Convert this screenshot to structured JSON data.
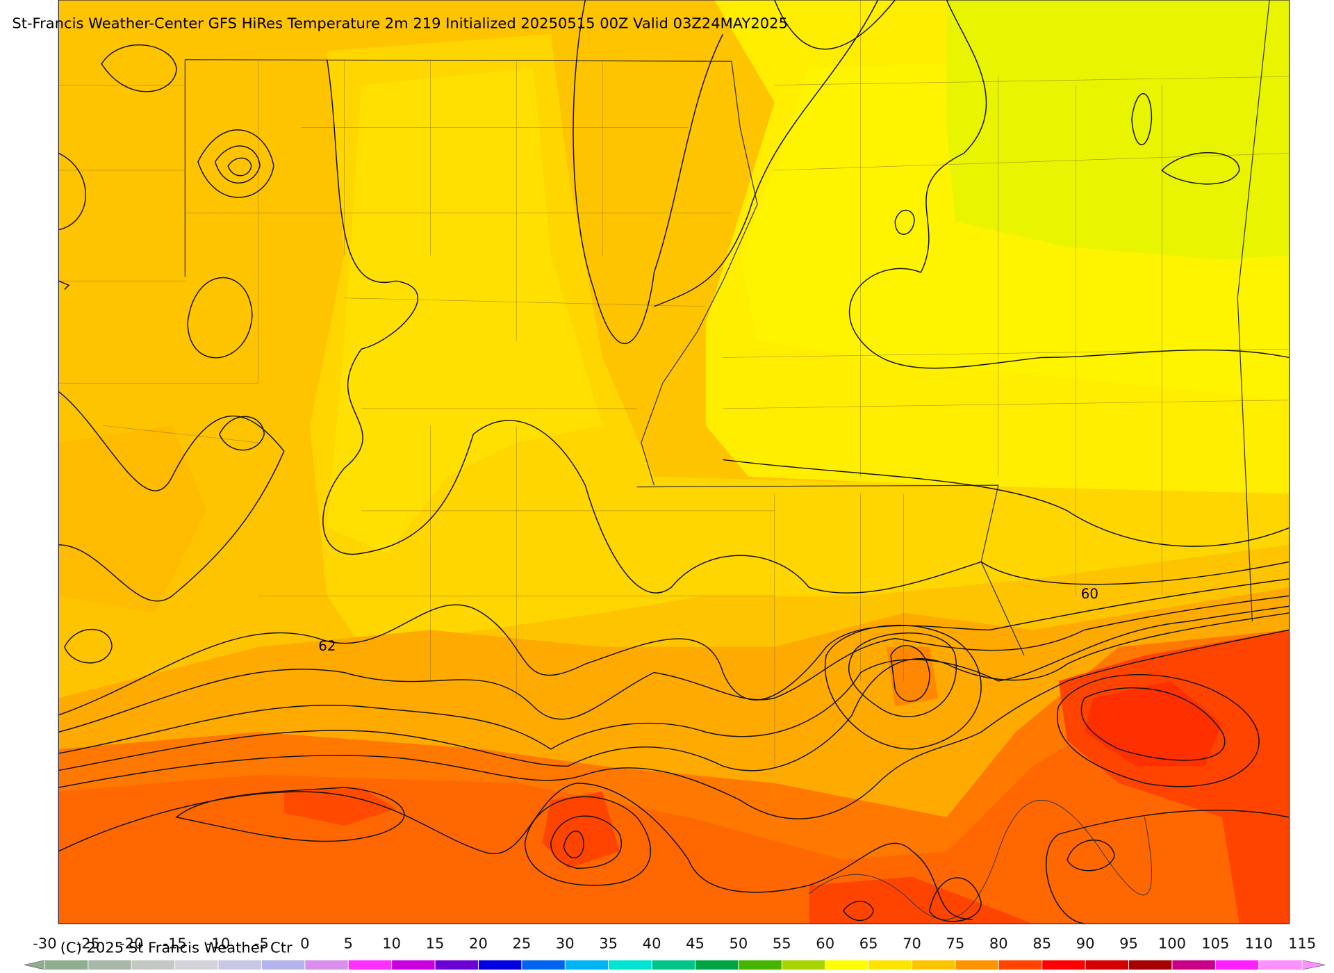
{
  "title": "St-Francis Weather-Center GFS HiRes Temperature 2m  219 Initialized 20250515 00Z Valid 03Z24MAY2025",
  "copyright": "(C) 2025 St Francis Weather Ctr",
  "contour_labels": [
    62,
    60
  ],
  "colorbar": {
    "ticks": [
      -30,
      -25,
      -20,
      -15,
      -10,
      -5,
      0,
      5,
      10,
      15,
      20,
      25,
      30,
      35,
      40,
      45,
      50,
      55,
      60,
      65,
      70,
      75,
      80,
      85,
      90,
      95,
      100,
      105,
      110,
      115
    ],
    "colors": [
      "#8fae8f",
      "#a8b8a8",
      "#c4c8c4",
      "#d4d4d8",
      "#c8c8e4",
      "#b4b4ec",
      "#d890ec",
      "#ff30ff",
      "#c800e0",
      "#6a00d4",
      "#0000e0",
      "#0064f0",
      "#00b4f4",
      "#00e4d4",
      "#00c488",
      "#00a444",
      "#44b400",
      "#a8d400",
      "#ffff00",
      "#ffe400",
      "#ffc400",
      "#ff9400",
      "#ff4400",
      "#ff0000",
      "#d40000",
      "#a40000",
      "#c80088",
      "#ff20ff",
      "#ff90ff"
    ]
  }
}
